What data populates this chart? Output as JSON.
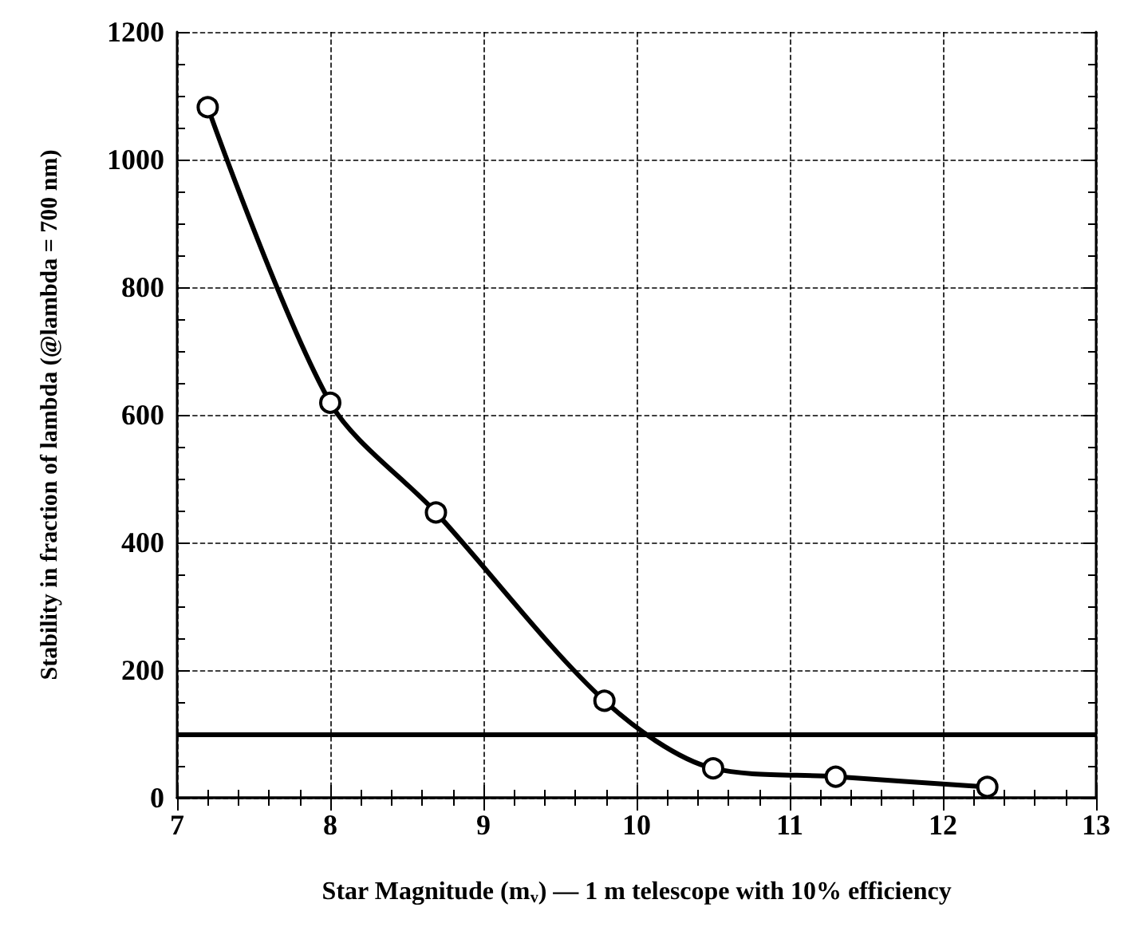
{
  "chart_data": {
    "type": "line",
    "xlabel": "Star Magnitude (m$_{v}$) — 1 m telescope with 10% efficiency",
    "ylabel": "Stability in fraction of lambda (@lambda = 700 nm)",
    "x": [
      7.2,
      8.0,
      8.69,
      9.79,
      10.5,
      11.3,
      12.29
    ],
    "series": [
      {
        "color": "#000000",
        "values": [
          1082,
          619,
          447,
          152,
          46,
          33,
          17
        ]
      }
    ],
    "xlim": [
      7,
      13
    ],
    "xticks": [
      7,
      8,
      9,
      10,
      11,
      12,
      13
    ],
    "ylim": [
      0,
      1200
    ],
    "yticks": [
      0,
      200,
      400,
      600,
      800,
      1000,
      1200
    ],
    "ref_lines": [
      {
        "axis": "y",
        "value": 100,
        "color": "#000000"
      }
    ],
    "grid": true,
    "marker": "circle",
    "line_style": "solid"
  }
}
